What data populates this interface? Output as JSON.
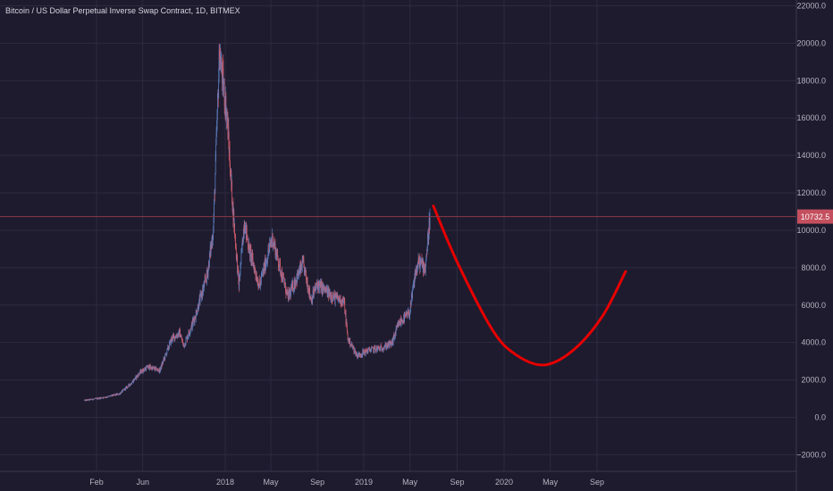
{
  "header": {
    "symbol_title": "Bitcoin / US Dollar Perpetual Inverse Swap Contract, 1D, BITMEX"
  },
  "colors": {
    "background": "#1e1b2e",
    "grid": "#2d2a40",
    "axis_text": "#b6b3c2",
    "up": "#5b7dbd",
    "down": "#d05b6a",
    "price_line": "#8a3b49",
    "price_tag": "#c44f5e",
    "projection": "#e60000"
  },
  "chart_data": {
    "type": "line",
    "xlabel": "",
    "ylabel": "",
    "grid": true,
    "x_ticks": [
      "Feb",
      "Jun",
      "2018",
      "May",
      "Sep",
      "2019",
      "May",
      "Sep",
      "2020",
      "May",
      "Sep"
    ],
    "x_tick_dates": [
      "2017-02-01",
      "2017-06-01",
      "2018-01-01",
      "2018-05-01",
      "2018-09-01",
      "2019-01-01",
      "2019-05-01",
      "2019-09-01",
      "2020-01-01",
      "2020-05-01",
      "2020-09-01"
    ],
    "y_ticks": [
      22000,
      20000,
      18000,
      16000,
      14000,
      12000,
      10000,
      8000,
      6000,
      4000,
      2000,
      0,
      -2000
    ],
    "y_tick_labels": [
      "22000.0",
      "20000.0",
      "18000.0",
      "16000.0",
      "14000.0",
      "12000.0",
      "10000.0",
      "8000.0",
      "6000.0",
      "4000.0",
      "2000.0",
      "0.0",
      "−2000.0"
    ],
    "ylim": [
      -2500,
      22500
    ],
    "current_price": 10732.5,
    "current_price_label": "10732.5",
    "series": [
      {
        "style": "candles",
        "x": [
          "2017-01-01",
          "2017-02-01",
          "2017-03-01",
          "2017-04-01",
          "2017-05-01",
          "2017-05-25",
          "2017-06-15",
          "2017-07-15",
          "2017-08-15",
          "2017-09-05",
          "2017-09-15",
          "2017-10-15",
          "2017-11-15",
          "2017-12-01",
          "2017-12-17",
          "2018-01-06",
          "2018-01-20",
          "2018-02-06",
          "2018-02-20",
          "2018-03-05",
          "2018-04-01",
          "2018-05-05",
          "2018-06-15",
          "2018-07-25",
          "2018-08-15",
          "2018-09-01",
          "2018-10-15",
          "2018-11-10",
          "2018-11-20",
          "2018-12-15",
          "2019-01-15",
          "2019-02-15",
          "2019-03-15",
          "2019-04-02",
          "2019-05-01",
          "2019-05-15",
          "2019-05-25",
          "2019-06-10",
          "2019-06-22"
        ],
        "values": [
          900,
          1000,
          1100,
          1250,
          1800,
          2400,
          2700,
          2500,
          4200,
          4500,
          3800,
          5400,
          7600,
          10000,
          19500,
          16000,
          11500,
          7000,
          10500,
          9000,
          7000,
          9600,
          6400,
          8200,
          6300,
          7100,
          6400,
          6200,
          4200,
          3300,
          3600,
          3700,
          3950,
          5000,
          5600,
          7700,
          8300,
          8000,
          10732
        ]
      },
      {
        "style": "projection",
        "x": [
          "2019-07-01",
          "2019-09-01",
          "2019-12-01",
          "2020-02-01",
          "2020-04-15",
          "2020-07-01",
          "2020-09-15",
          "2020-11-15"
        ],
        "values": [
          11300,
          8300,
          4700,
          3350,
          2800,
          3600,
          5400,
          7800
        ]
      }
    ]
  }
}
